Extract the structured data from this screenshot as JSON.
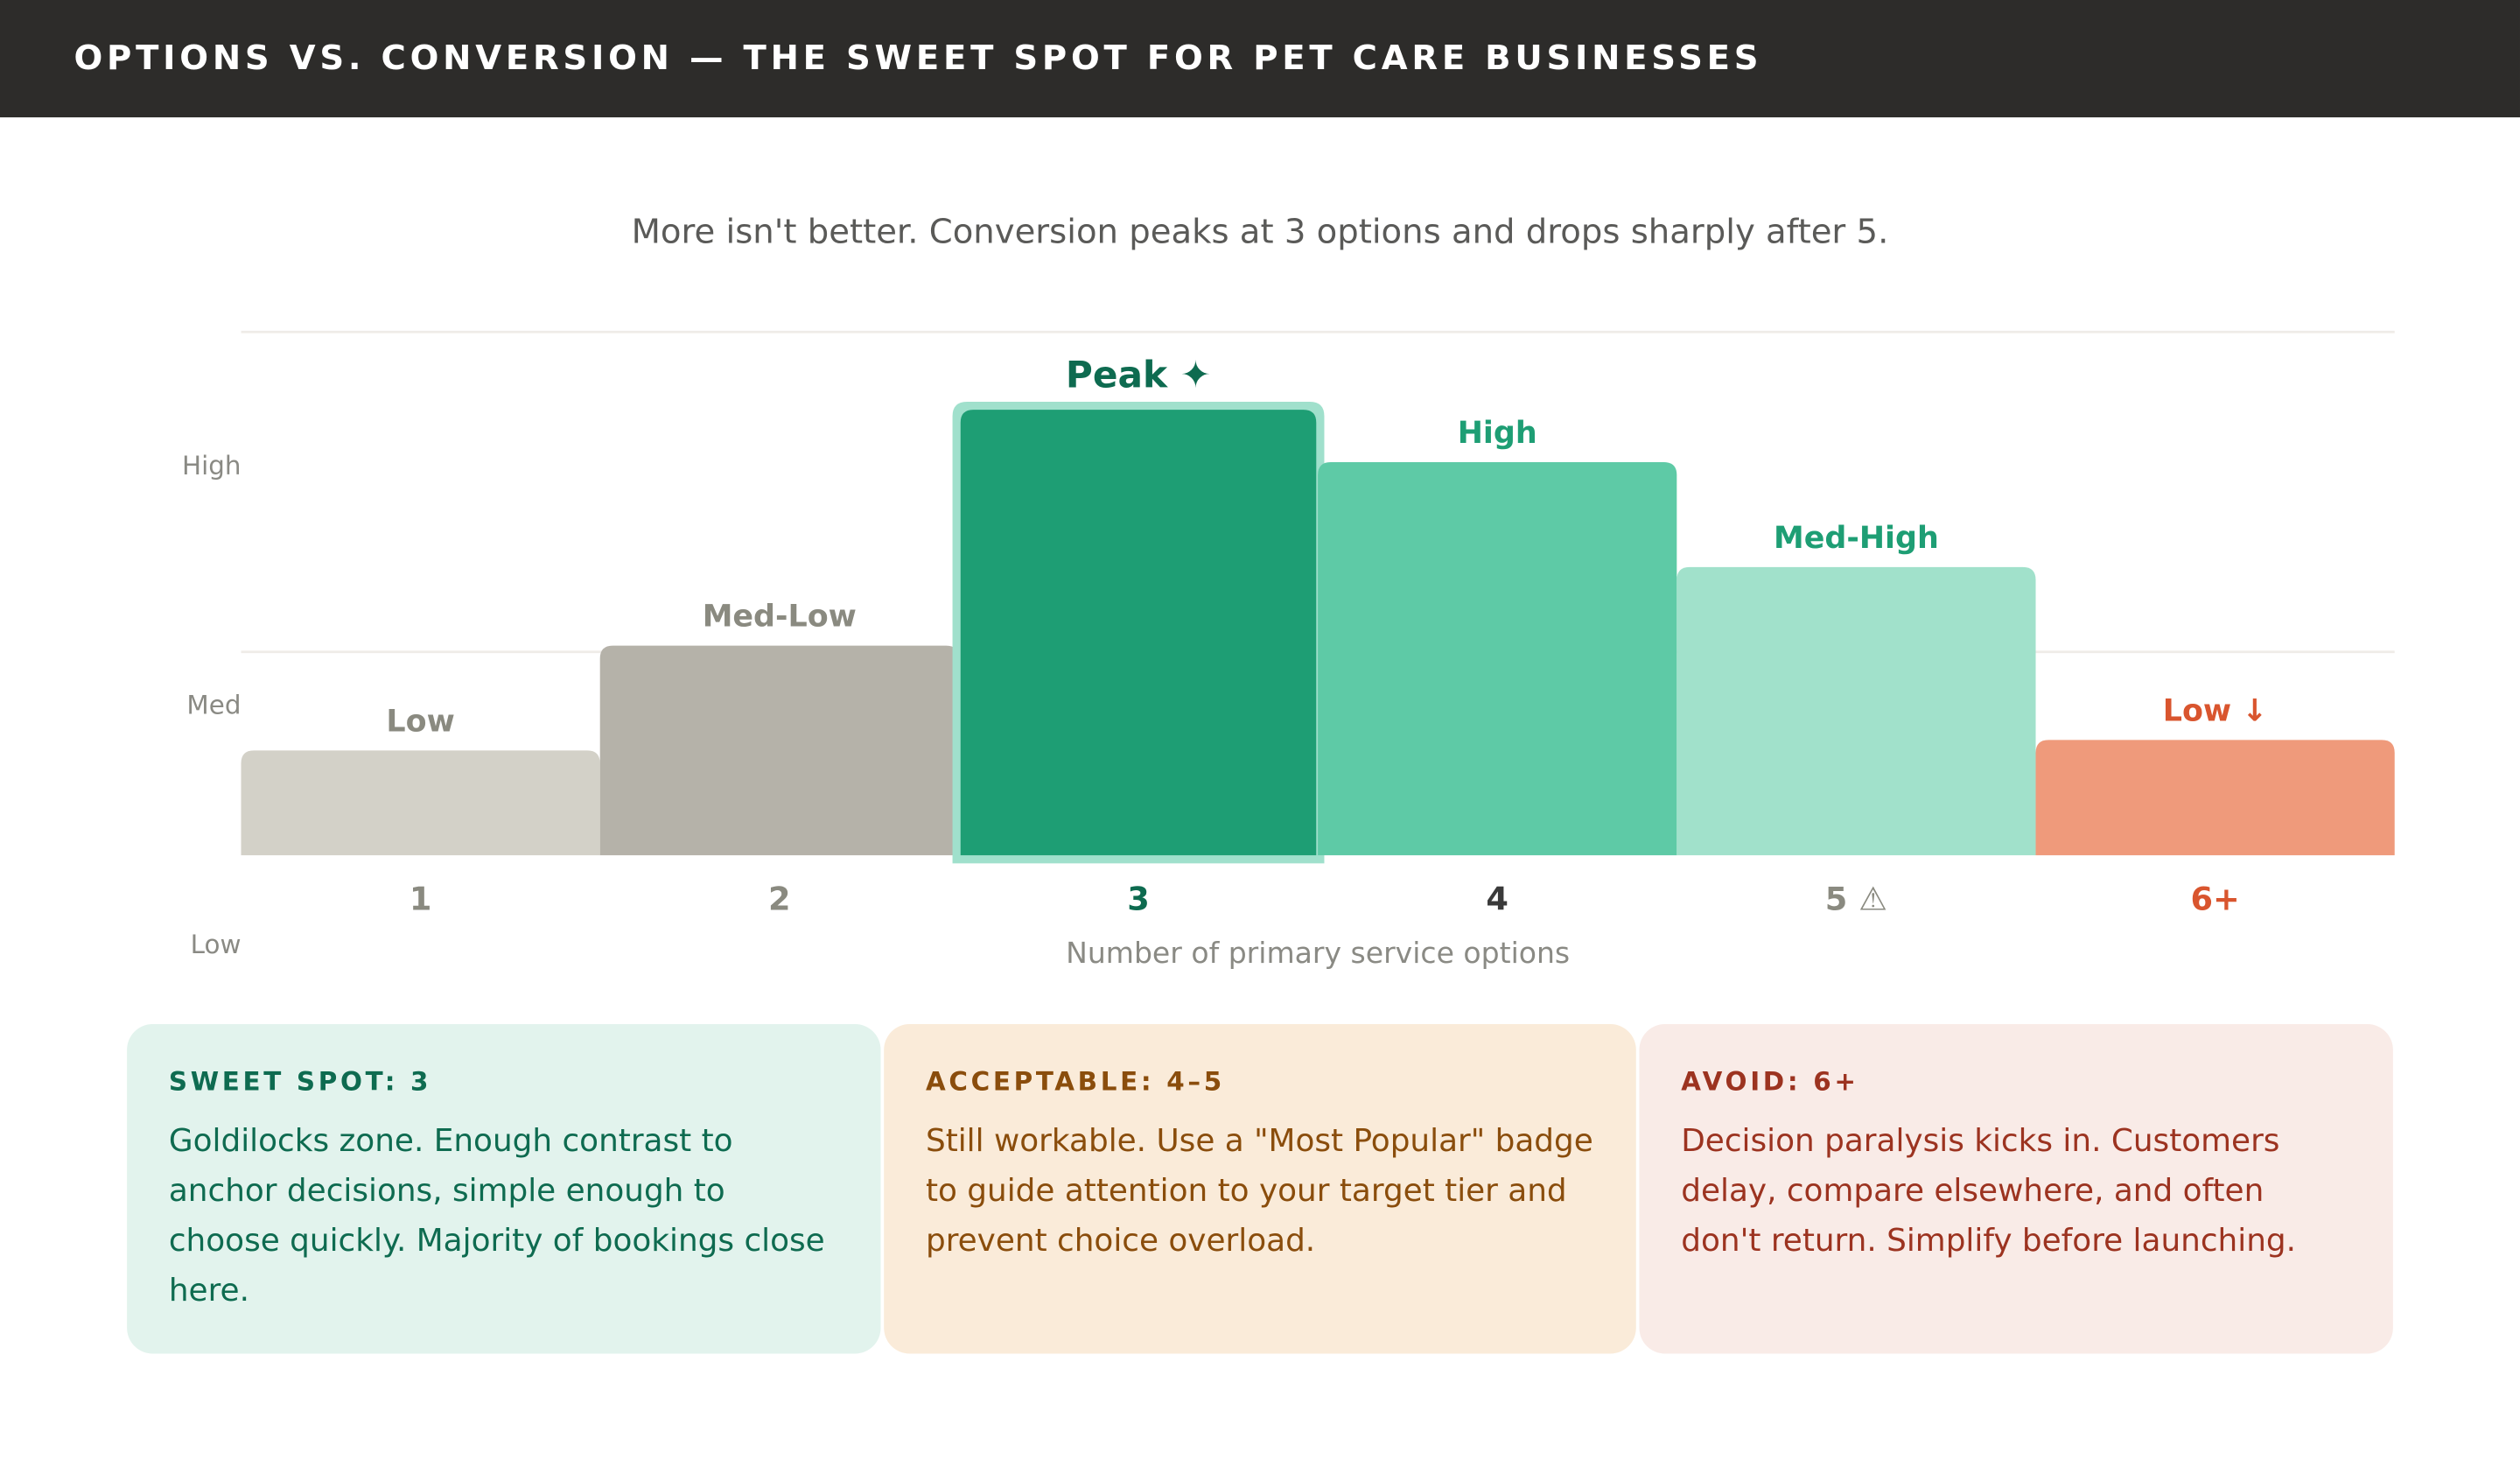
{
  "header": {
    "title": "OPTIONS VS. CONVERSION — THE SWEET SPOT FOR PET CARE BUSINESSES"
  },
  "subtitle": "More isn't better. Conversion peaks at 3 options and drops sharply after 5.",
  "chart_data": {
    "type": "bar",
    "xlabel": "Number of primary service options",
    "ylabel": "",
    "y_tick_labels": [
      "High",
      "Med",
      "Low"
    ],
    "ylim": [
      0,
      100
    ],
    "grid": true,
    "categories": [
      "1",
      "2",
      "3",
      "4",
      "5 ⚠",
      "6+"
    ],
    "values": [
      20,
      40,
      85,
      75,
      55,
      22
    ],
    "data_labels": [
      "Low",
      "Med-Low",
      "Peak ✦",
      "High",
      "Med-High",
      "Low ↓"
    ],
    "bar_colors": [
      "#d3d1c8",
      "#b5b2a9",
      "#1e9e74",
      "#5ecaa6",
      "#a1e1cb",
      "#ef9a7b"
    ],
    "label_colors": [
      "#8a8a80",
      "#8a8a80",
      "#0e6b50",
      "#1e9e74",
      "#1e9e74",
      "#d9552e"
    ],
    "tick_colors": [
      "#8a8a80",
      "#8a8a80",
      "#0e6b50",
      "#3a3a3a",
      "#8a8a80",
      "#d9552e"
    ],
    "highlight_index": 2,
    "highlight_outline_color": "#a0e0cc"
  },
  "cards": [
    {
      "title": "SWEET SPOT: 3",
      "body": "Goldilocks zone. Enough contrast to anchor decisions, simple enough to choose quickly. Majority of bookings close here.",
      "bg": "#e2f3ed",
      "color": "#0e6b50"
    },
    {
      "title": "ACCEPTABLE: 4–5",
      "body": "Still workable. Use a \"Most Popular\" badge to guide attention to your target tier and prevent choice overload.",
      "bg": "#faebd9",
      "color": "#8a4d0c"
    },
    {
      "title": "AVOID: 6+",
      "body": "Decision paralysis kicks in. Customers delay, compare elsewhere, and often don't return. Simplify before launching.",
      "bg": "#f9ebe7",
      "color": "#9c3320"
    }
  ]
}
